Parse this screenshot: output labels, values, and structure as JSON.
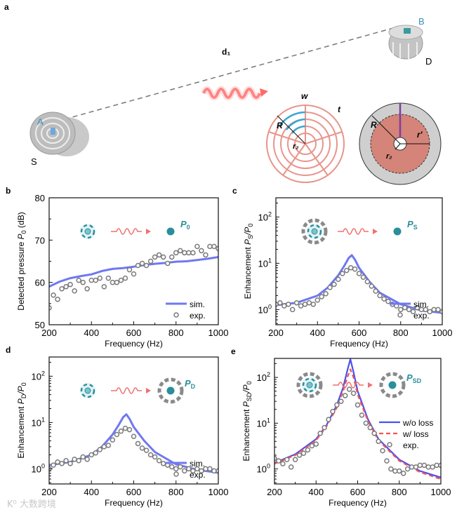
{
  "panel_a": {
    "label": "a",
    "distance_label": "d₁",
    "point_a": "A",
    "point_b": "B",
    "source_label": "S",
    "detector_label": "D",
    "w_label": "w",
    "t_label": "t",
    "R_label": "R",
    "r2_label": "r₂",
    "R_label_2": "R",
    "r2_label_2": "r₂",
    "rprime_label": "r′"
  },
  "colors": {
    "sim": "#6f78f2",
    "wo_loss": "#4b4ff0",
    "w_loss": "#f25555",
    "exp": "#7a7a7a",
    "teal": "#2a8f9a",
    "wave": "#f07070"
  },
  "watermark": "K⁰ 大数跨境",
  "chart_data": [
    {
      "panel": "b",
      "type": "line",
      "ylog": false,
      "xlabel": "Frequency (Hz)",
      "ylabel": [
        [
          "Detected pressure ",
          ""
        ],
        [
          "P",
          "i"
        ],
        [
          "0",
          "sub"
        ],
        [
          " (dB)",
          ""
        ]
      ],
      "xlim": [
        200,
        1000
      ],
      "ylim": [
        50,
        80
      ],
      "xticks": [
        200,
        400,
        600,
        800,
        1000
      ],
      "yticks": [
        50,
        60,
        70,
        80
      ],
      "inset": {
        "source": "bare",
        "receiver": "dot",
        "label": "P",
        "label_sub": "0"
      },
      "legend": [
        {
          "type": "line",
          "label": "sim.",
          "series": 0
        },
        {
          "type": "scatter",
          "label": "exp.",
          "series": 1
        }
      ],
      "series": [
        {
          "name": "sim.",
          "kind": "line",
          "color": "#6f78f2",
          "x": [
            200,
            250,
            300,
            350,
            400,
            450,
            500,
            550,
            600,
            650,
            700,
            750,
            800,
            850,
            900,
            950,
            1000
          ],
          "y": [
            59,
            60.2,
            61,
            61.5,
            61.9,
            62.7,
            63.2,
            63.4,
            63.7,
            64.1,
            64.4,
            64.6,
            64.9,
            65,
            65.3,
            65.6,
            66
          ]
        },
        {
          "name": "exp.",
          "kind": "scatter",
          "x": [
            200,
            220,
            240,
            260,
            280,
            300,
            320,
            340,
            360,
            380,
            400,
            420,
            440,
            460,
            480,
            500,
            520,
            540,
            560,
            580,
            600,
            620,
            640,
            660,
            680,
            700,
            720,
            740,
            760,
            780,
            800,
            820,
            840,
            860,
            880,
            900,
            920,
            940,
            960,
            980,
            1000
          ],
          "y": [
            54,
            57,
            56,
            58.5,
            59,
            59.5,
            58,
            60.5,
            60,
            58.5,
            60.5,
            60.5,
            61,
            59,
            61,
            60,
            60,
            60.5,
            61,
            63,
            62,
            64,
            64.5,
            64,
            65,
            66,
            66.5,
            66,
            64.5,
            66,
            67,
            67.5,
            67,
            67,
            67,
            68.5,
            67.5,
            66.5,
            68.5,
            68.5,
            68
          ]
        }
      ]
    },
    {
      "panel": "c",
      "type": "line",
      "ylog": true,
      "xlabel": "Frequency (Hz)",
      "ylabel": [
        [
          "Enhancement ",
          ""
        ],
        [
          "P",
          "i"
        ],
        [
          "S",
          "sub"
        ],
        [
          "/P",
          "i"
        ],
        [
          "0",
          "sub"
        ]
      ],
      "xlim": [
        200,
        1000
      ],
      "ylim": [
        0.47,
        260
      ],
      "xticks": [
        200,
        400,
        600,
        800,
        1000
      ],
      "yticks": [
        1,
        10,
        100
      ],
      "inset": {
        "source": "shell",
        "receiver": "dot",
        "label": "P",
        "label_sub": "S"
      },
      "legend": [
        {
          "type": "line",
          "label": "sim.",
          "series": 0
        },
        {
          "type": "scatter",
          "label": "exp.",
          "series": 1
        }
      ],
      "series": [
        {
          "name": "sim.",
          "kind": "line",
          "color": "#6f78f2",
          "x": [
            200,
            300,
            400,
            450,
            500,
            530,
            550,
            565,
            580,
            600,
            650,
            700,
            800,
            900,
            1000
          ],
          "y": [
            1.25,
            1.4,
            2.0,
            3.0,
            5.5,
            9,
            13,
            15,
            12,
            8,
            4,
            2.3,
            1.3,
            0.95,
            0.85
          ]
        },
        {
          "name": "exp.",
          "kind": "scatter",
          "x": [
            200,
            220,
            240,
            260,
            280,
            300,
            320,
            340,
            360,
            380,
            400,
            420,
            440,
            460,
            480,
            500,
            520,
            540,
            560,
            580,
            600,
            620,
            640,
            660,
            680,
            700,
            720,
            740,
            760,
            780,
            800,
            820,
            840,
            860,
            880,
            900,
            920,
            940,
            960,
            980,
            1000
          ],
          "y": [
            1.3,
            1.4,
            1.2,
            1.3,
            1.0,
            1.4,
            1.2,
            1.3,
            1.4,
            1.3,
            1.6,
            1.9,
            2.2,
            3,
            3.5,
            4.5,
            6,
            7,
            8,
            7.5,
            6,
            5,
            4,
            3.2,
            2.5,
            2,
            1.7,
            1.5,
            1.3,
            1.2,
            1,
            1.1,
            1.0,
            0.9,
            1.1,
            1.0,
            1.0,
            0.9,
            1.0,
            1.0,
            0.9
          ]
        }
      ]
    },
    {
      "panel": "d",
      "type": "line",
      "ylog": true,
      "xlabel": "Frequency (Hz)",
      "ylabel": [
        [
          "Enhancement ",
          ""
        ],
        [
          "P",
          "i"
        ],
        [
          "D",
          "sub"
        ],
        [
          "/P",
          "i"
        ],
        [
          "0",
          "sub"
        ]
      ],
      "xlim": [
        200,
        1000
      ],
      "ylim": [
        0.47,
        260
      ],
      "xticks": [
        200,
        400,
        600,
        800,
        1000
      ],
      "yticks": [
        1,
        10,
        100
      ],
      "inset": {
        "source": "bare",
        "receiver": "shell-dot",
        "label": "P",
        "label_sub": "D"
      },
      "legend": [
        {
          "type": "line",
          "label": "sim.",
          "series": 0
        },
        {
          "type": "scatter",
          "label": "exp.",
          "series": 1
        }
      ],
      "series": [
        {
          "name": "sim.",
          "kind": "line",
          "color": "#6f78f2",
          "x": [
            200,
            300,
            400,
            450,
            500,
            530,
            550,
            565,
            580,
            600,
            650,
            700,
            800,
            900,
            1000
          ],
          "y": [
            1.2,
            1.4,
            2.0,
            3.0,
            5.5,
            9,
            13,
            15,
            12,
            8,
            4,
            2.3,
            1.25,
            0.95,
            0.82
          ]
        },
        {
          "name": "exp.",
          "kind": "scatter",
          "x": [
            200,
            220,
            240,
            260,
            280,
            300,
            320,
            340,
            360,
            380,
            400,
            420,
            440,
            460,
            480,
            500,
            520,
            540,
            560,
            580,
            600,
            620,
            640,
            660,
            680,
            700,
            720,
            740,
            760,
            780,
            800,
            820,
            840,
            860,
            880,
            900,
            920,
            940,
            960,
            980,
            1000
          ],
          "y": [
            1.0,
            1.2,
            1.4,
            1.3,
            1.5,
            1.3,
            1.6,
            1.5,
            1.8,
            1.6,
            2.0,
            2.2,
            2.6,
            3.0,
            3.2,
            4.2,
            5.5,
            6.5,
            7.5,
            7,
            5,
            3.5,
            2.8,
            2.5,
            2.0,
            1.8,
            1.5,
            1.3,
            1.2,
            1.1,
            1.0,
            1.1,
            0.9,
            1.0,
            0.9,
            1.0,
            0.9,
            1.0,
            1.0,
            0.9,
            0.9
          ]
        }
      ]
    },
    {
      "panel": "e",
      "type": "line",
      "ylog": true,
      "xlabel": "Frequency (Hz)",
      "ylabel": [
        [
          "Enhancement ",
          ""
        ],
        [
          "P",
          "i"
        ],
        [
          "SD",
          "sub"
        ],
        [
          "/P",
          "i"
        ],
        [
          "0",
          "sub"
        ]
      ],
      "xlim": [
        200,
        1000
      ],
      "ylim": [
        0.47,
        260
      ],
      "xticks": [
        200,
        400,
        600,
        800,
        1000
      ],
      "yticks": [
        1,
        10,
        100
      ],
      "inset": {
        "source": "shell",
        "receiver": "shell-dot",
        "label": "P",
        "label_sub": "SD"
      },
      "legend": [
        {
          "type": "line",
          "label": "w/o loss",
          "series": 0
        },
        {
          "type": "dash",
          "label": "w/   loss",
          "series": 1
        },
        {
          "type": "scatter",
          "label": "exp.",
          "series": 2
        }
      ],
      "series": [
        {
          "name": "w/o loss",
          "kind": "line",
          "color": "#4b4ff0",
          "x": [
            200,
            300,
            400,
            450,
            500,
            530,
            550,
            565,
            580,
            600,
            650,
            700,
            800,
            900,
            1000
          ],
          "y": [
            1.35,
            2.1,
            4.5,
            9,
            25,
            60,
            140,
            250,
            130,
            50,
            12,
            4.5,
            1.6,
            0.9,
            0.65
          ]
        },
        {
          "name": "w/ loss",
          "kind": "dash",
          "color": "#f25555",
          "x": [
            200,
            300,
            400,
            450,
            500,
            530,
            550,
            565,
            580,
            600,
            650,
            700,
            800,
            900,
            1000
          ],
          "y": [
            1.3,
            2.0,
            4.2,
            8.5,
            22,
            50,
            100,
            150,
            100,
            42,
            11,
            4.2,
            1.5,
            0.85,
            0.6
          ]
        },
        {
          "name": "exp.",
          "kind": "scatter",
          "x": [
            200,
            220,
            240,
            260,
            280,
            300,
            320,
            340,
            360,
            380,
            400,
            420,
            440,
            460,
            480,
            500,
            520,
            540,
            560,
            580,
            600,
            620,
            640,
            660,
            680,
            700,
            720,
            740,
            760,
            780,
            800,
            820,
            840,
            860,
            880,
            900,
            920,
            940,
            960,
            980,
            1000
          ],
          "y": [
            1.7,
            1.5,
            1.3,
            1.6,
            1.1,
            1.6,
            2,
            2.2,
            2.6,
            3.2,
            3.5,
            6,
            8,
            12,
            18,
            25,
            30,
            40,
            55,
            45,
            25,
            15,
            10,
            8,
            6,
            4,
            2.5,
            1.5,
            1.0,
            0.9,
            0.9,
            0.8,
            1.0,
            1.1,
            1.1,
            1.2,
            1.2,
            1.1,
            1.1,
            1.2,
            1.2
          ]
        }
      ]
    }
  ]
}
